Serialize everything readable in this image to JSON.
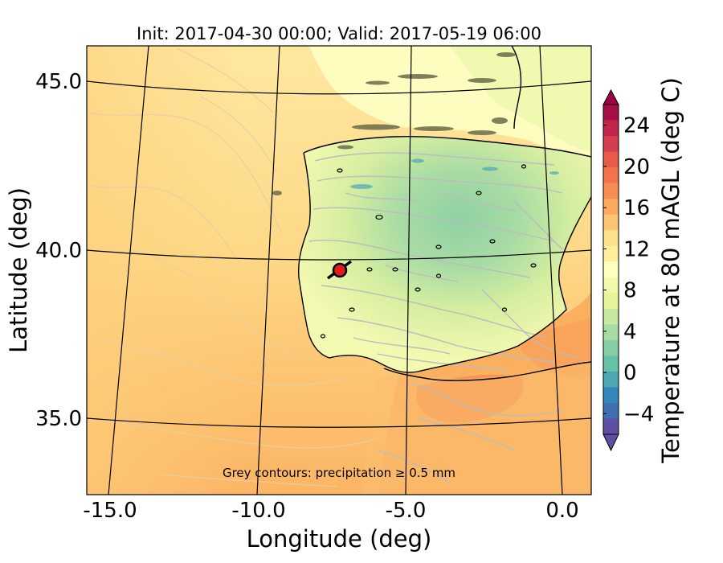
{
  "title": "Init: 2017-04-30 00:00; Valid: 2017-05-19 06:00",
  "xlabel": "Longitude (deg)",
  "ylabel": "Latitude (deg)",
  "x_ticks": [
    "-15.0",
    "-10.0",
    "-5.0",
    "0.0"
  ],
  "y_ticks": [
    "45.0",
    "40.0",
    "35.0"
  ],
  "colorbar": {
    "label": "Temperature at 80 mAGL (deg C)",
    "ticks": [
      "24",
      "20",
      "16",
      "12",
      "8",
      "4",
      "0",
      "−4"
    ],
    "colors": [
      "#a50f45",
      "#c2264d",
      "#d53e4f",
      "#e65b4a",
      "#f1744a",
      "#f88d52",
      "#fbaa5f",
      "#fdc574",
      "#fee08b",
      "#feef9e",
      "#ffffbe",
      "#f2f9ab",
      "#e6f598",
      "#c7e8a0",
      "#a9dca4",
      "#86cfa5",
      "#66c2a5",
      "#4ea5b3",
      "#3288bd",
      "#4070b2",
      "#5e4fa2"
    ]
  },
  "annotation": "Grey contours: precipitation ≥ 0.5 mm",
  "marker": {
    "label_color": "#e41a1c"
  },
  "chart_data": {
    "type": "heatmap",
    "title": "Init: 2017-04-30 00:00; Valid: 2017-05-19 06:00",
    "xlabel": "Longitude (deg)",
    "ylabel": "Latitude (deg)",
    "xlim": [
      -16,
      0.2
    ],
    "ylim": [
      32.8,
      46.2
    ],
    "x_ticks": [
      -15.0,
      -10.0,
      -5.0,
      0.0
    ],
    "y_ticks": [
      45.0,
      40.0,
      35.0
    ],
    "colorbar_label": "Temperature at 80 mAGL (deg C)",
    "colorbar_ticks": [
      24,
      20,
      16,
      12,
      8,
      4,
      0,
      -4
    ],
    "colorbar_range": [
      -6,
      26
    ],
    "marker_point": {
      "lon": -7.6,
      "lat": 39.4
    }
  }
}
